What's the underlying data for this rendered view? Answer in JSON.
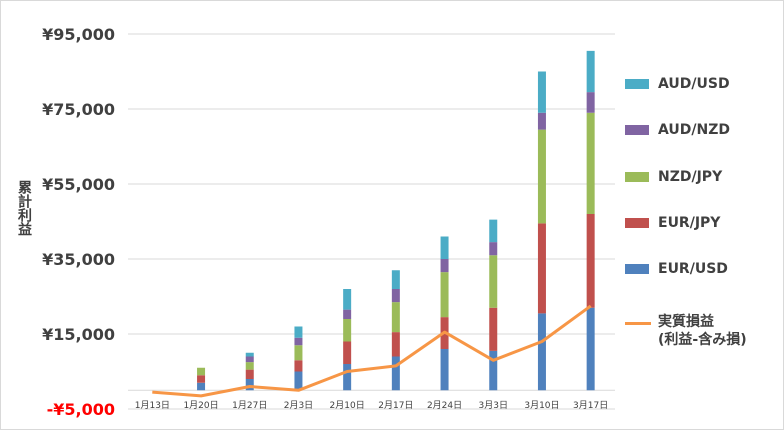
{
  "chart_data": {
    "type": "bar",
    "stacked": true,
    "title": "",
    "ylabel": "累計利益",
    "xlabel": "",
    "ylim": [
      -5000,
      95000
    ],
    "yticks": [
      "¥95,000",
      "¥75,000",
      "¥55,000",
      "¥35,000",
      "¥15,000",
      "-¥5,000"
    ],
    "ytick_values": [
      95000,
      75000,
      55000,
      35000,
      15000,
      -5000
    ],
    "categories": [
      "1月13日",
      "1月20日",
      "1月27日",
      "2月3日",
      "2月10日",
      "2月17日",
      "2月24日",
      "3月3日",
      "3月10日",
      "3月17日"
    ],
    "series": [
      {
        "name": "EUR/USD",
        "color": "#4f81bd",
        "values": [
          0,
          2000,
          3000,
          5000,
          7000,
          9000,
          11000,
          10500,
          20500,
          22000
        ]
      },
      {
        "name": "EUR/JPY",
        "color": "#c0504d",
        "values": [
          0,
          2000,
          2500,
          3000,
          6000,
          6500,
          8500,
          11500,
          24000,
          25000
        ]
      },
      {
        "name": "NZD/JPY",
        "color": "#9bbb59",
        "values": [
          0,
          2000,
          2000,
          4000,
          6000,
          8000,
          12000,
          14000,
          25000,
          27000
        ]
      },
      {
        "name": "AUD/NZD",
        "color": "#8064a2",
        "values": [
          0,
          0,
          1500,
          2000,
          2500,
          3500,
          3500,
          3500,
          4500,
          5500
        ]
      },
      {
        "name": "AUD/USD",
        "color": "#4bacc6",
        "values": [
          0,
          0,
          1000,
          3000,
          5500,
          5000,
          6000,
          6000,
          11000,
          11000
        ]
      }
    ],
    "line_series": {
      "name": "実質損益\n(利益-含み損)",
      "color": "#f79646",
      "values": [
        -500,
        -1500,
        1000,
        0,
        5000,
        6500,
        15500,
        8000,
        13000,
        22500
      ]
    },
    "legend_position": "right",
    "grid": true
  }
}
